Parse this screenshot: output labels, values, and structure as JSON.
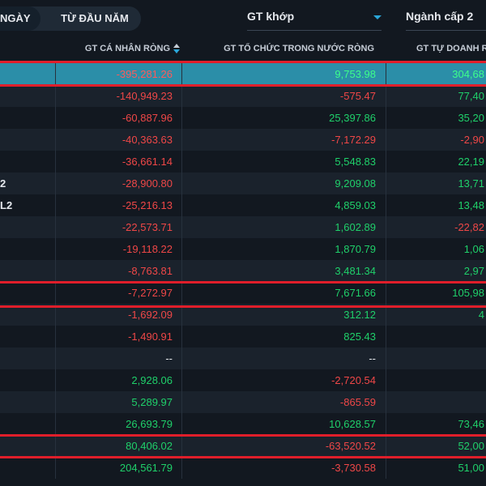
{
  "top_bar": {
    "period_tabs": [
      {
        "label": "NGÀY",
        "active": true
      },
      {
        "label": "TỪ ĐẦU NĂM",
        "active": false
      }
    ],
    "value_dropdown": {
      "label": "GT khớp"
    },
    "sector_dropdown": {
      "label": "Ngành cấp 2"
    }
  },
  "table": {
    "headers": {
      "individual": "GT CÁ NHÂN RÒNG",
      "institution": "GT TỔ CHỨC TRONG NƯỚC RÒNG",
      "proprietary": "GT TỰ DOANH R"
    },
    "rows": [
      {
        "name": "",
        "individual": "-395,281.26",
        "institution": "9,753.98",
        "proprietary": "304,68",
        "selected": true
      },
      {
        "name": "",
        "individual": "-140,949.23",
        "institution": "-575.47",
        "proprietary": "77,40"
      },
      {
        "name": "",
        "individual": "-60,887.96",
        "institution": "25,397.86",
        "proprietary": "35,20"
      },
      {
        "name": "",
        "individual": "-40,363.63",
        "institution": "-7,172.29",
        "proprietary": "-2,90"
      },
      {
        "name": "",
        "individual": "-36,661.14",
        "institution": "5,548.83",
        "proprietary": "22,19"
      },
      {
        "name": "2",
        "individual": "-28,900.80",
        "institution": "9,209.08",
        "proprietary": "13,71"
      },
      {
        "name": "L2",
        "individual": "-25,216.13",
        "institution": "4,859.03",
        "proprietary": "13,48"
      },
      {
        "name": "",
        "individual": "-22,573.71",
        "institution": "1,602.89",
        "proprietary": "-22,82"
      },
      {
        "name": "",
        "individual": "-19,118.22",
        "institution": "1,870.79",
        "proprietary": "1,06"
      },
      {
        "name": "",
        "individual": "-8,763.81",
        "institution": "3,481.34",
        "proprietary": "2,97"
      },
      {
        "name": "",
        "individual": "-7,272.97",
        "institution": "7,671.66",
        "proprietary": "105,98"
      },
      {
        "name": "",
        "individual": "-1,692.09",
        "institution": "312.12",
        "proprietary": "4"
      },
      {
        "name": "",
        "individual": "-1,490.91",
        "institution": "825.43",
        "proprietary": ""
      },
      {
        "name": "",
        "individual": "--",
        "institution": "--",
        "proprietary": ""
      },
      {
        "name": "",
        "individual": "2,928.06",
        "institution": "-2,720.54",
        "proprietary": ""
      },
      {
        "name": "",
        "individual": "5,289.97",
        "institution": "-865.59",
        "proprietary": ""
      },
      {
        "name": "",
        "individual": "26,693.79",
        "institution": "10,628.57",
        "proprietary": "73,46"
      },
      {
        "name": "",
        "individual": "80,406.02",
        "institution": "-63,520.52",
        "proprietary": "52,00"
      },
      {
        "name": "",
        "individual": "204,561.79",
        "institution": "-3,730.58",
        "proprietary": "51,00"
      }
    ]
  },
  "colors": {
    "negative": "#ef4747",
    "positive": "#1fd06a",
    "selected_row": "#2b8ea8",
    "highlight": "#e01e2a",
    "accent": "#2aa6d8"
  }
}
